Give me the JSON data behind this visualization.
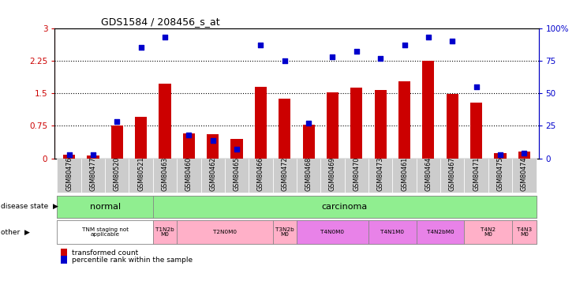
{
  "title": "GDS1584 / 208456_s_at",
  "samples": [
    "GSM80476",
    "GSM80477",
    "GSM80520",
    "GSM80521",
    "GSM80463",
    "GSM80460",
    "GSM80462",
    "GSM80465",
    "GSM80466",
    "GSM80472",
    "GSM80468",
    "GSM80469",
    "GSM80470",
    "GSM80473",
    "GSM80461",
    "GSM80464",
    "GSM80467",
    "GSM80471",
    "GSM80475",
    "GSM80474"
  ],
  "transformed_count": [
    0.08,
    0.07,
    0.75,
    0.95,
    1.72,
    0.58,
    0.55,
    0.45,
    1.65,
    1.38,
    0.77,
    1.52,
    1.63,
    1.58,
    1.78,
    2.25,
    1.48,
    1.28,
    0.12,
    0.15
  ],
  "percentile_rank": [
    3,
    3,
    28,
    85,
    93,
    18,
    14,
    7,
    87,
    75,
    27,
    78,
    82,
    77,
    87,
    93,
    90,
    55,
    3,
    4
  ],
  "ylim_left": [
    0,
    3
  ],
  "ylim_right": [
    0,
    100
  ],
  "yticks_left": [
    0,
    0.75,
    1.5,
    2.25,
    3
  ],
  "yticks_right": [
    0,
    25,
    50,
    75,
    100
  ],
  "normal_color": "#90EE90",
  "carcinoma_color": "#90EE90",
  "other_groups": [
    {
      "label": "TNM staging not\napplicable",
      "start": 0,
      "end": 4,
      "color": "#ffffff"
    },
    {
      "label": "T1N2b\nM0",
      "start": 4,
      "end": 5,
      "color": "#FFB0C8"
    },
    {
      "label": "T2N0M0",
      "start": 5,
      "end": 9,
      "color": "#FFB0C8"
    },
    {
      "label": "T3N2b\nM0",
      "start": 9,
      "end": 10,
      "color": "#FFB0C8"
    },
    {
      "label": "T4N0M0",
      "start": 10,
      "end": 13,
      "color": "#E882E8"
    },
    {
      "label": "T4N1M0",
      "start": 13,
      "end": 15,
      "color": "#E882E8"
    },
    {
      "label": "T4N2bM0",
      "start": 15,
      "end": 17,
      "color": "#E882E8"
    },
    {
      "label": "T4N2\nM0",
      "start": 17,
      "end": 19,
      "color": "#FFB0C8"
    },
    {
      "label": "T4N3\nM0",
      "start": 19,
      "end": 20,
      "color": "#FFB0C8"
    }
  ],
  "bar_color": "#cc0000",
  "dot_color": "#0000cc",
  "bar_width": 0.5,
  "dot_size": 22,
  "background_color": "#ffffff",
  "left_axis_color": "#cc0000",
  "right_axis_color": "#0000cc",
  "xtick_bg_color": "#cccccc"
}
